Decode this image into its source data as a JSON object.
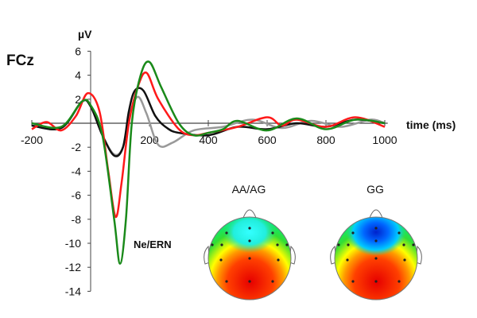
{
  "chart_data": {
    "type": "line",
    "title": "FCz",
    "ylabel": "µV",
    "xlabel": "time (ms)",
    "xlim": [
      -200,
      1000
    ],
    "ylim": [
      -14,
      6
    ],
    "xticks": [
      -200,
      200,
      400,
      600,
      800,
      1000
    ],
    "yticks": [
      6,
      4,
      2,
      -2,
      -4,
      -6,
      -8,
      -10,
      -12,
      -14
    ],
    "series": [
      {
        "name": "gray",
        "color": "#999999",
        "x": [
          -200,
          -100,
          -30,
          0,
          40,
          80,
          110,
          130,
          160,
          190,
          230,
          280,
          350,
          450,
          550,
          650,
          750,
          850,
          950,
          1000
        ],
        "y": [
          -0.2,
          -0.4,
          1.8,
          1.4,
          -1,
          -2.6,
          -2,
          0.5,
          2.2,
          0.8,
          -1.8,
          -1.6,
          -0.6,
          -0.3,
          0.3,
          -0.4,
          0.2,
          -0.3,
          0.3,
          0
        ]
      },
      {
        "name": "black",
        "color": "#111111",
        "x": [
          -200,
          -100,
          -30,
          0,
          40,
          80,
          110,
          130,
          150,
          180,
          220,
          260,
          300,
          400,
          500,
          600,
          700,
          800,
          900,
          1000
        ],
        "y": [
          -0.2,
          -0.4,
          1.8,
          1.4,
          -1,
          -2.7,
          -2,
          1,
          2.7,
          2.7,
          0.6,
          -0.4,
          -0.8,
          -1,
          -0.3,
          -0.5,
          0,
          -0.3,
          0.3,
          0
        ]
      },
      {
        "name": "red",
        "color": "#ff1a1a",
        "x": [
          -200,
          -150,
          -100,
          -50,
          -10,
          30,
          60,
          85,
          105,
          130,
          160,
          190,
          230,
          300,
          350,
          400,
          500,
          600,
          650,
          700,
          800,
          900,
          1000
        ],
        "y": [
          -0.5,
          0.1,
          -0.6,
          0.6,
          2.5,
          1,
          -4,
          -7.8,
          -5,
          0,
          3,
          4.2,
          2,
          -0.5,
          -1,
          -0.8,
          -0.3,
          0.5,
          -0.2,
          0.3,
          -0.3,
          0.5,
          -0.3
        ]
      },
      {
        "name": "green",
        "color": "#1a8a1a",
        "x": [
          -200,
          -100,
          -30,
          0,
          40,
          80,
          100,
          120,
          140,
          170,
          200,
          240,
          300,
          350,
          400,
          450,
          500,
          600,
          700,
          800,
          900,
          1000
        ],
        "y": [
          0,
          -0.3,
          1.8,
          1.5,
          -1,
          -8,
          -11.7,
          -8,
          0,
          4,
          5.1,
          3,
          0,
          -1,
          -0.8,
          -0.5,
          0.2,
          -0.6,
          0.4,
          -0.5,
          0.3,
          0
        ]
      }
    ],
    "annotations": {
      "component": "Ne/ERN",
      "topo_labels": [
        "AA/AG",
        "GG"
      ]
    }
  }
}
